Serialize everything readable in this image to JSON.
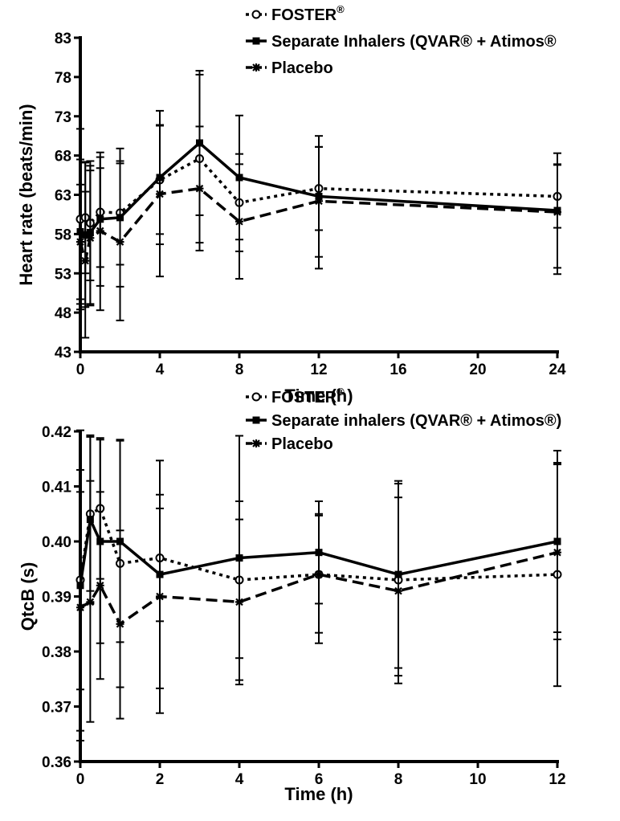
{
  "chart_data": [
    {
      "type": "line",
      "ylabel": "Heart rate (beats/min)",
      "xlabel": "Time (h)",
      "xlim": [
        0,
        24
      ],
      "ylim": [
        43,
        83
      ],
      "xticks": [
        "0",
        "4",
        "8",
        "12",
        "16",
        "20",
        "24"
      ],
      "yticks": [
        "43",
        "48",
        "53",
        "58",
        "63",
        "68",
        "73",
        "78",
        "83"
      ],
      "legend_position": "top-right",
      "series": [
        {
          "name": "FOSTER",
          "name_sup": "®",
          "style": "dotted",
          "marker": "open-circle",
          "x": [
            0,
            0.25,
            0.5,
            1,
            2,
            4,
            6,
            8,
            12,
            24
          ],
          "y": [
            59.9,
            60.1,
            59.4,
            60.8,
            60.7,
            64.9,
            67.6,
            62.0,
            63.8,
            62.8
          ],
          "err_upper": [
            71.4,
            67.2,
            66.7,
            67.8,
            67.3,
            71.8,
            78.3,
            68.2,
            69.1,
            66.8
          ],
          "err_lower": [
            48.4,
            53.0,
            52.1,
            53.8,
            54.1,
            58.0,
            56.9,
            55.8,
            58.5,
            58.8
          ]
        },
        {
          "name": "Separate Inhalers (QVAR® + Atimos®",
          "style": "solid",
          "marker": "filled-square",
          "x": [
            0,
            0.25,
            0.5,
            1,
            2,
            4,
            6,
            8,
            12,
            24
          ],
          "y": [
            58.3,
            57.9,
            58.2,
            59.9,
            60.1,
            65.2,
            69.6,
            65.2,
            62.8,
            61.0
          ],
          "err_upper": [
            67.5,
            67.1,
            67.3,
            68.4,
            68.9,
            73.7,
            78.8,
            73.1,
            70.5,
            68.3
          ],
          "err_lower": [
            49.1,
            48.7,
            49.1,
            51.4,
            51.3,
            56.7,
            60.4,
            57.3,
            55.1,
            53.7
          ]
        },
        {
          "name": "Placebo",
          "style": "dashed",
          "marker": "asterisk",
          "x": [
            0,
            0.25,
            0.5,
            1,
            2,
            4,
            6,
            8,
            12,
            24
          ],
          "y": [
            57.0,
            54.6,
            57.5,
            58.4,
            57.0,
            63.1,
            63.8,
            59.6,
            62.2,
            60.8
          ],
          "err_upper": [
            64.3,
            63.4,
            66.1,
            66.4,
            67.0,
            71.9,
            71.7,
            66.9,
            69.1,
            66.9
          ],
          "err_lower": [
            49.7,
            44.8,
            48.9,
            48.3,
            47.0,
            52.6,
            55.9,
            52.3,
            53.6,
            52.9
          ]
        }
      ]
    },
    {
      "type": "line",
      "ylabel": "QtcB (s)",
      "xlabel": "Time (h)",
      "xlim": [
        0,
        12
      ],
      "ylim": [
        0.36,
        0.42
      ],
      "xticks": [
        "0",
        "2",
        "4",
        "6",
        "8",
        "10",
        "12"
      ],
      "yticks": [
        "0.36",
        "0.37",
        "0.38",
        "0.39",
        "0.40",
        "0.41",
        "0.42"
      ],
      "legend_position": "top-right",
      "series": [
        {
          "name": "FOSTER",
          "name_sup": "®",
          "style": "dotted",
          "marker": "open-circle",
          "x": [
            0,
            0.25,
            0.5,
            1,
            2,
            4,
            6,
            8,
            12
          ],
          "y": [
            0.393,
            0.405,
            0.406,
            0.396,
            0.397,
            0.393,
            0.394,
            0.393,
            0.394
          ],
          "err_upper": [
            0.413,
            0.419,
            0.4188,
            0.4185,
            0.4085,
            0.4073,
            0.4047,
            0.4105,
            0.4143
          ],
          "err_lower": [
            0.3731,
            0.391,
            0.3932,
            0.3735,
            0.3855,
            0.3788,
            0.3834,
            0.3756,
            0.3737
          ]
        },
        {
          "name": "Separate inhalers (QVAR® + Atimos®)",
          "style": "solid",
          "marker": "filled-square",
          "x": [
            0,
            0.25,
            0.5,
            1,
            2,
            4,
            6,
            8,
            12
          ],
          "y": [
            0.392,
            0.404,
            0.4,
            0.4,
            0.394,
            0.397,
            0.398,
            0.394,
            0.4
          ],
          "err_upper": [
            0.4202,
            0.4193,
            0.4185,
            0.4183,
            0.4147,
            0.4192,
            0.4073,
            0.411,
            0.4165
          ],
          "err_lower": [
            0.3638,
            0.3887,
            0.3815,
            0.3817,
            0.3733,
            0.3748,
            0.3887,
            0.377,
            0.3835
          ]
        },
        {
          "name": "Placebo",
          "style": "dashed",
          "marker": "asterisk",
          "x": [
            0,
            0.25,
            0.5,
            1,
            2,
            4,
            6,
            8,
            12
          ],
          "y": [
            0.388,
            0.389,
            0.392,
            0.385,
            0.39,
            0.389,
            0.394,
            0.391,
            0.398
          ],
          "err_upper": [
            0.409,
            0.411,
            0.409,
            0.402,
            0.406,
            0.404,
            0.405,
            0.408,
            0.414
          ],
          "err_lower": [
            0.3656,
            0.3672,
            0.375,
            0.3678,
            0.3688,
            0.374,
            0.3815,
            0.3742,
            0.3822
          ]
        }
      ]
    }
  ]
}
